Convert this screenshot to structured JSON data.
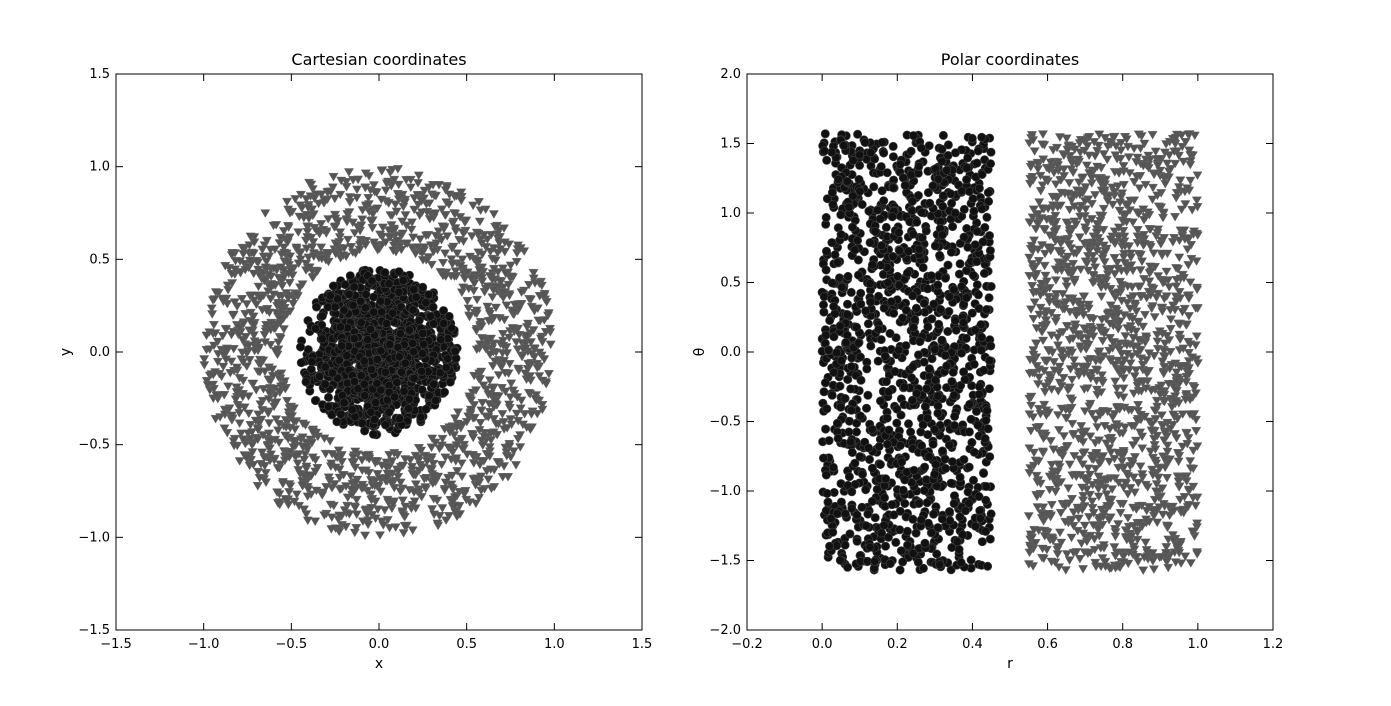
{
  "chart_data": [
    {
      "type": "scatter",
      "title": "Cartesian coordinates",
      "xlabel": "x",
      "ylabel": "y",
      "xlim": [
        -1.5,
        1.5
      ],
      "ylim": [
        -1.5,
        1.5
      ],
      "xticks": [
        "−1.5",
        "−1.0",
        "−0.5",
        "0.0",
        "0.5",
        "1.0",
        "1.5"
      ],
      "yticks": [
        "−1.5",
        "−1.0",
        "−0.5",
        "0.0",
        "0.5",
        "1.0",
        "1.5"
      ],
      "grid": false,
      "series": [
        {
          "marker": "circle",
          "color": "#111111",
          "count": 1500,
          "description_region": "disk r in [0, 0.45]",
          "region": {
            "shape": "disk",
            "r_min": 0.0,
            "r_max": 0.45
          }
        },
        {
          "marker": "triangle-down",
          "color": "#555555",
          "count": 1500,
          "region": {
            "shape": "annulus",
            "r_min": 0.55,
            "r_max": 1.0
          }
        }
      ]
    },
    {
      "type": "scatter",
      "title": "Polar coordinates",
      "xlabel": "r",
      "ylabel": "θ",
      "xlim": [
        -0.2,
        1.2
      ],
      "ylim": [
        -2.0,
        2.0
      ],
      "xticks": [
        "−0.2",
        "0.0",
        "0.2",
        "0.4",
        "0.6",
        "0.8",
        "1.0",
        "1.2"
      ],
      "yticks": [
        "−2.0",
        "−1.5",
        "−1.0",
        "−0.5",
        "0.0",
        "0.5",
        "1.0",
        "1.5",
        "2.0"
      ],
      "grid": false,
      "series": [
        {
          "marker": "circle",
          "color": "#111111",
          "count": 1500,
          "region": {
            "shape": "rect",
            "x_min": 0.0,
            "x_max": 0.45,
            "y_min": -1.5708,
            "y_max": 1.5708
          }
        },
        {
          "marker": "triangle-down",
          "color": "#555555",
          "count": 1500,
          "region": {
            "shape": "rect",
            "x_min": 0.55,
            "x_max": 1.0,
            "y_min": -1.5708,
            "y_max": 1.5708
          }
        }
      ]
    }
  ]
}
